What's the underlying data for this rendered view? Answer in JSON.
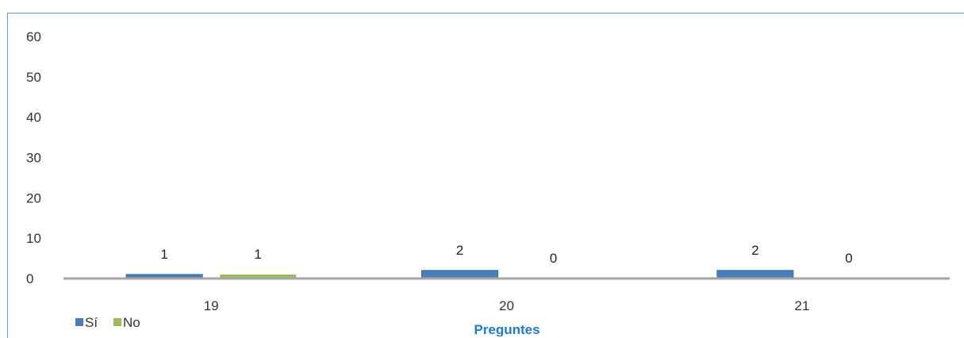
{
  "chart_data": {
    "type": "bar",
    "title": "",
    "xlabel": "Preguntes",
    "ylabel": "",
    "categories": [
      "19",
      "20",
      "21"
    ],
    "ylim": [
      0,
      60
    ],
    "yticks": [
      "0",
      "10",
      "20",
      "30",
      "40",
      "50",
      "60"
    ],
    "grid": false,
    "legend_position": "bottom-left",
    "series": [
      {
        "name": "Sí",
        "color": "#4a7ebb",
        "values": [
          1,
          2,
          2
        ]
      },
      {
        "name": "No",
        "color": "#9bbb59",
        "values": [
          1,
          0,
          0
        ]
      }
    ],
    "data_labels": [
      [
        "1",
        "2",
        "2"
      ],
      [
        "1",
        "0",
        "0"
      ]
    ]
  },
  "colors": {
    "frame": "#5b9bd5",
    "axis": "#a6a6a6"
  }
}
